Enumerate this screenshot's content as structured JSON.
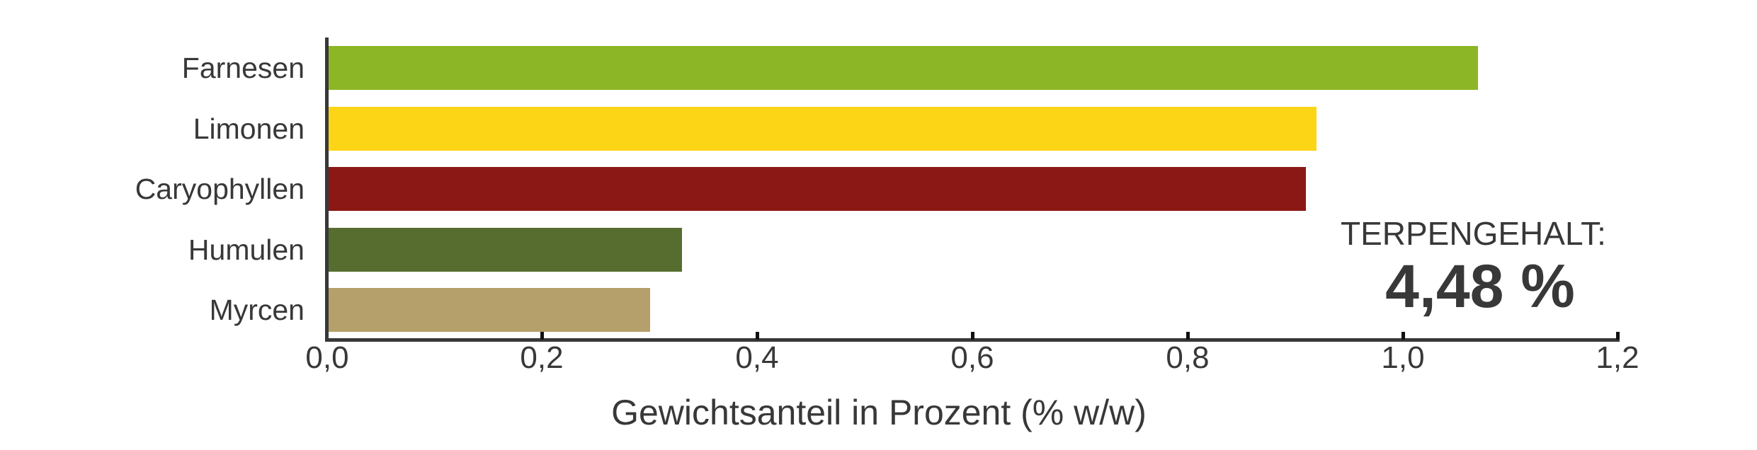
{
  "chart_data": {
    "type": "bar",
    "orientation": "horizontal",
    "categories": [
      "Farnesen",
      "Limonen",
      "Caryophyllen",
      "Humulen",
      "Myrcen"
    ],
    "values": [
      1.07,
      0.92,
      0.91,
      0.33,
      0.3
    ],
    "colors": [
      "#8cb625",
      "#fcd616",
      "#8b1815",
      "#566d2f",
      "#b5a06b"
    ],
    "title": "",
    "xlabel": "Gewichtsanteil in Prozent (% w/w)",
    "ylabel": "",
    "xlim": [
      0,
      1.2
    ],
    "xticks": [
      0.0,
      0.2,
      0.4,
      0.6,
      0.8,
      1.0,
      1.2
    ],
    "xtick_labels": [
      "0,0",
      "0,2",
      "0,4",
      "0,6",
      "0,8",
      "1,0",
      "1,2"
    ],
    "grid": false,
    "legend": null,
    "annotations": [
      {
        "text": "TERPENGEHALT:",
        "position": "right-middle"
      },
      {
        "text": "4,48 %",
        "position": "right-middle",
        "bold": true
      }
    ]
  },
  "summary": {
    "label": "TERPENGEHALT:",
    "value": "4,48 %"
  },
  "axis": {
    "title": "Gewichtsanteil in Prozent (% w/w)",
    "ticks": [
      "0,0",
      "0,2",
      "0,4",
      "0,6",
      "0,8",
      "1,0",
      "1,2"
    ]
  },
  "bars": [
    {
      "label": "Farnesen",
      "value": 1.07,
      "color": "#8cb625"
    },
    {
      "label": "Limonen",
      "value": 0.92,
      "color": "#fcd616"
    },
    {
      "label": "Caryophyllen",
      "value": 0.91,
      "color": "#8b1815"
    },
    {
      "label": "Humulen",
      "value": 0.33,
      "color": "#566d2f"
    },
    {
      "label": "Myrcen",
      "value": 0.3,
      "color": "#b5a06b"
    }
  ]
}
